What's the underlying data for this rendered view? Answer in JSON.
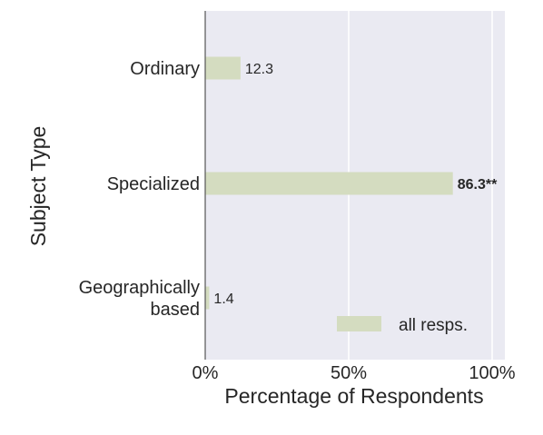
{
  "chart_data": {
    "type": "bar",
    "orientation": "horizontal",
    "categories": [
      "Ordinary",
      "Specialized",
      "Geographically based"
    ],
    "category_label_lines": [
      [
        "Ordinary"
      ],
      [
        "Specialized"
      ],
      [
        "Geographically",
        "based"
      ]
    ],
    "series": [
      {
        "name": "all resps.",
        "values": [
          12.3,
          86.3,
          1.4
        ]
      }
    ],
    "data_labels": [
      "12.3",
      "86.3**",
      "1.4"
    ],
    "data_label_bold": [
      false,
      true,
      false
    ],
    "xlabel": "Percentage of Respondents",
    "ylabel": "Subject Type",
    "xlim": [
      0,
      100
    ],
    "xticks": [
      0,
      50,
      100
    ],
    "xtick_labels": [
      "0%",
      "50%",
      "100%"
    ],
    "grid": true,
    "legend_position": "lower-right",
    "colors": {
      "bar": "#d4dcc0",
      "plot_background": "#eaeaf2",
      "grid": "#ffffff",
      "axis_line": "#555555",
      "text": "#262626"
    }
  }
}
